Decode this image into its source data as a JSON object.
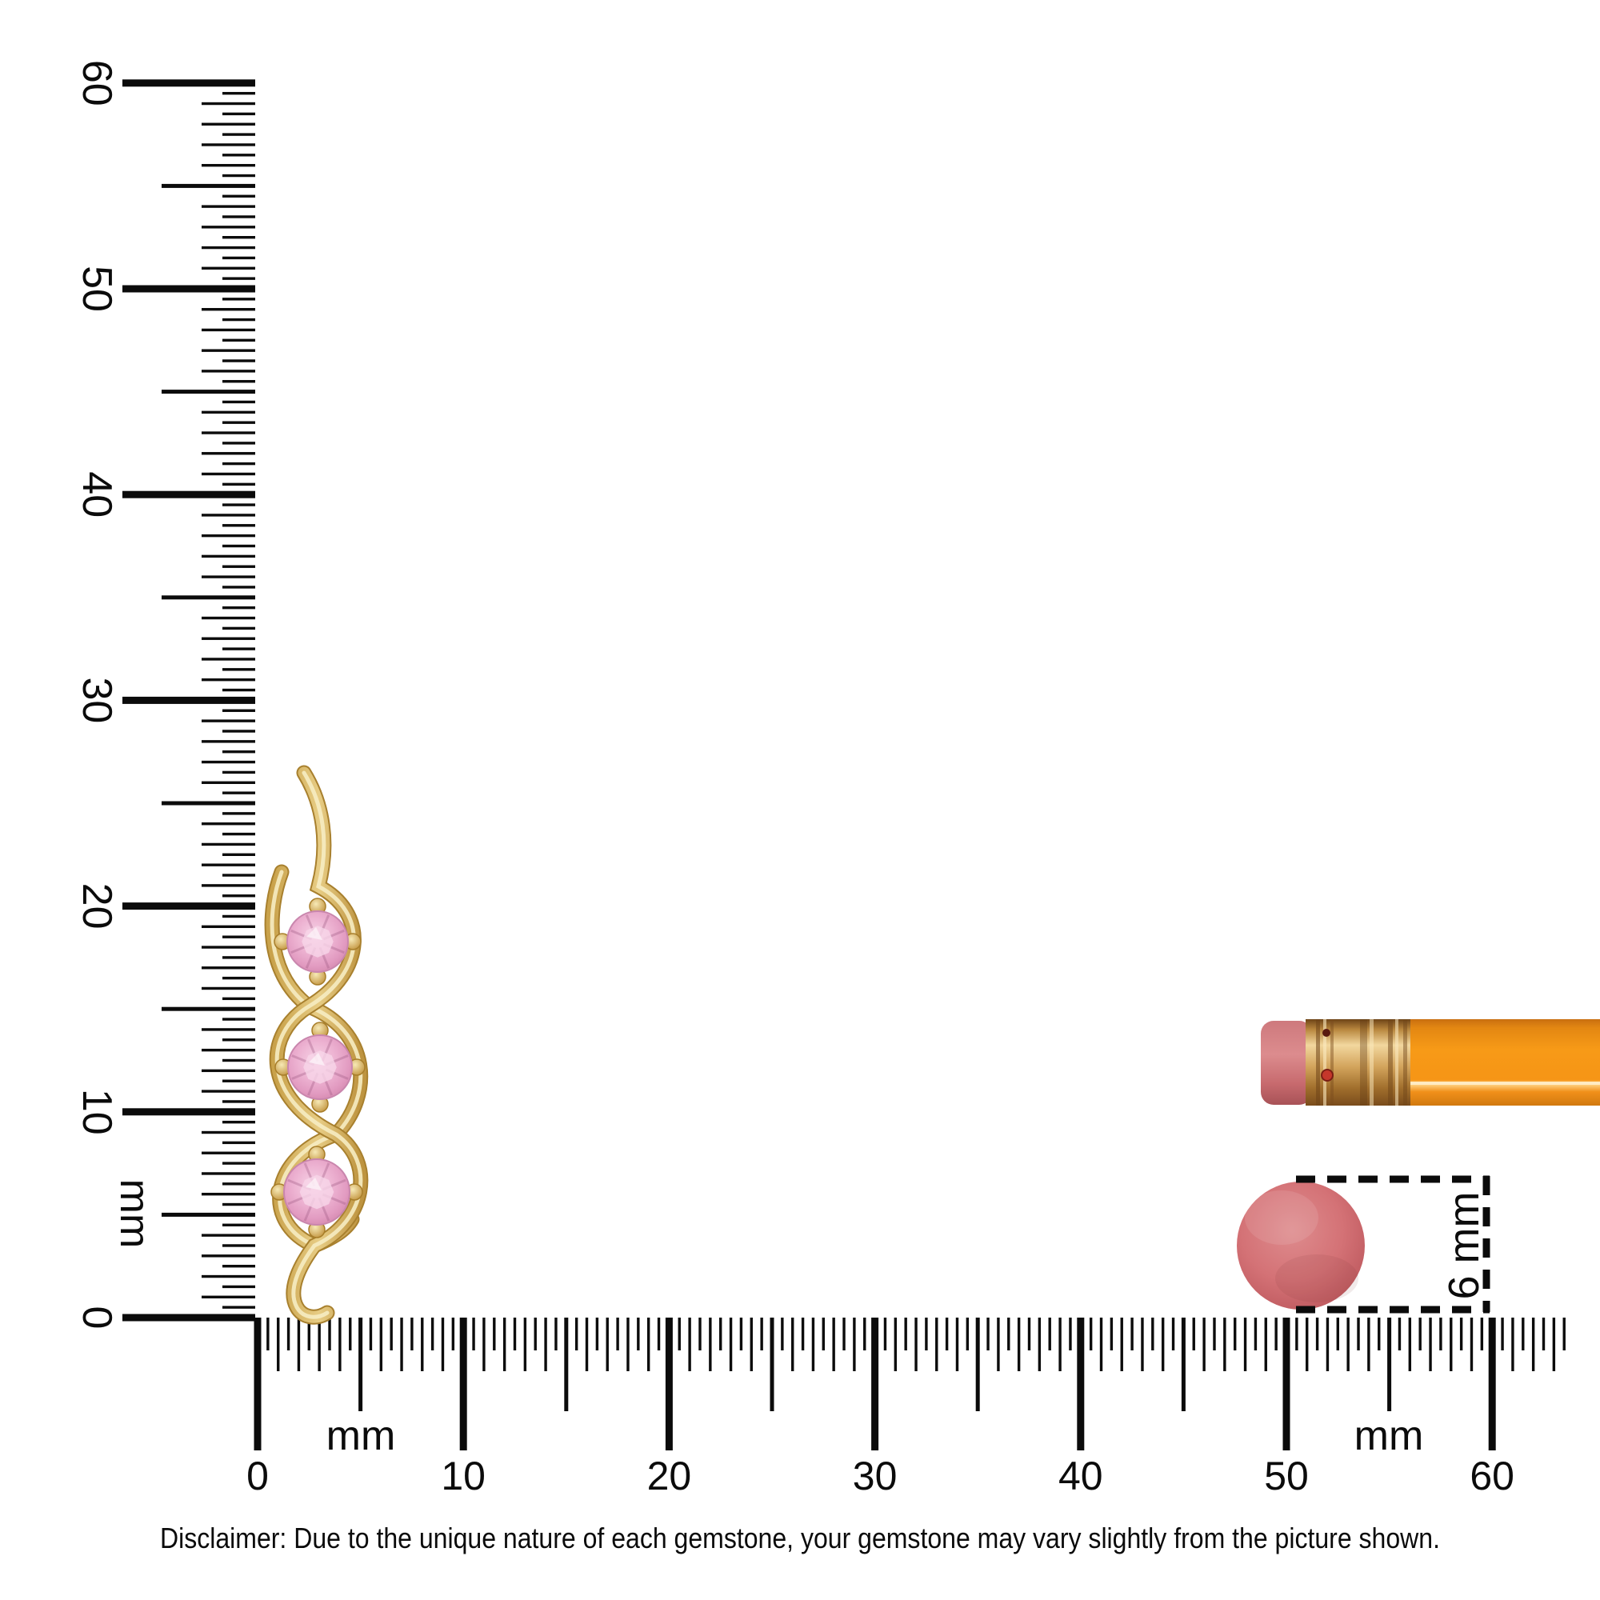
{
  "page": {
    "background": "#ffffff"
  },
  "rulers": {
    "vertical": {
      "unit_label": "mm",
      "tick_labels": [
        "0",
        "10",
        "20",
        "30",
        "40",
        "50",
        "60"
      ],
      "range_mm": [
        0,
        60
      ]
    },
    "horizontal": {
      "unit_label": "mm",
      "tick_labels": [
        "0",
        "10",
        "20",
        "30",
        "40",
        "50",
        "60"
      ],
      "range_mm": [
        0,
        60
      ]
    }
  },
  "measurement_callout": {
    "label": "6 mm",
    "value_mm": 6
  },
  "objects": {
    "pendant": {
      "description": "yellow gold twist pendant with three round pink gemstones",
      "stone_count": 3
    },
    "pencil": {
      "parts": [
        "eraser",
        "ferrule",
        "body"
      ]
    },
    "eraser_disc": {
      "shape": "circle"
    }
  },
  "colors": {
    "ink": "#0b0b0b",
    "gold_light": "#F3E3AC",
    "gold_mid": "#E2C170",
    "gold_dark": "#B98C33",
    "gem_pink": "#EDA9CC",
    "gem_pink_light": "#F6D3E6",
    "pencil_orange": "#F79A17",
    "ferrule_copper": "#C9933F",
    "eraser_pink": "#D27D80",
    "disc_red": "#CE6B6F"
  },
  "disclaimer": {
    "text": "Disclaimer: Due to the unique nature of each gemstone, your gemstone may vary slightly from the picture shown."
  }
}
